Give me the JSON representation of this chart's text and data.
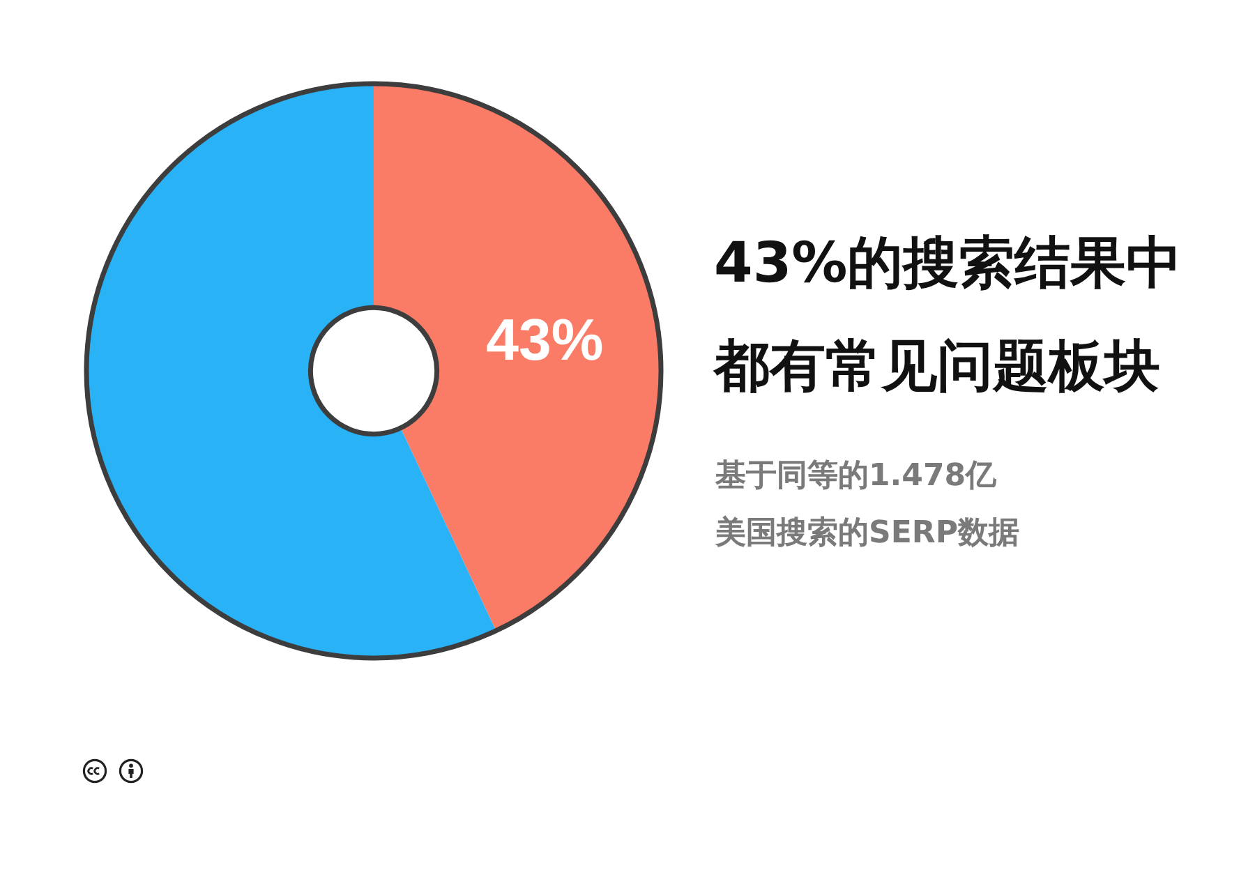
{
  "chart_data": {
    "type": "donut",
    "title": "43%的搜索结果中都有常见问题板块",
    "subtitle": "基于同等的1.478亿美国搜索的SERP数据",
    "categories": [
      null,
      null
    ],
    "values": [
      43,
      57
    ],
    "colors": [
      "#fa7b66",
      "#2ab2f7"
    ],
    "value_labels": [
      "43%",
      null
    ],
    "legend": false
  }
}
